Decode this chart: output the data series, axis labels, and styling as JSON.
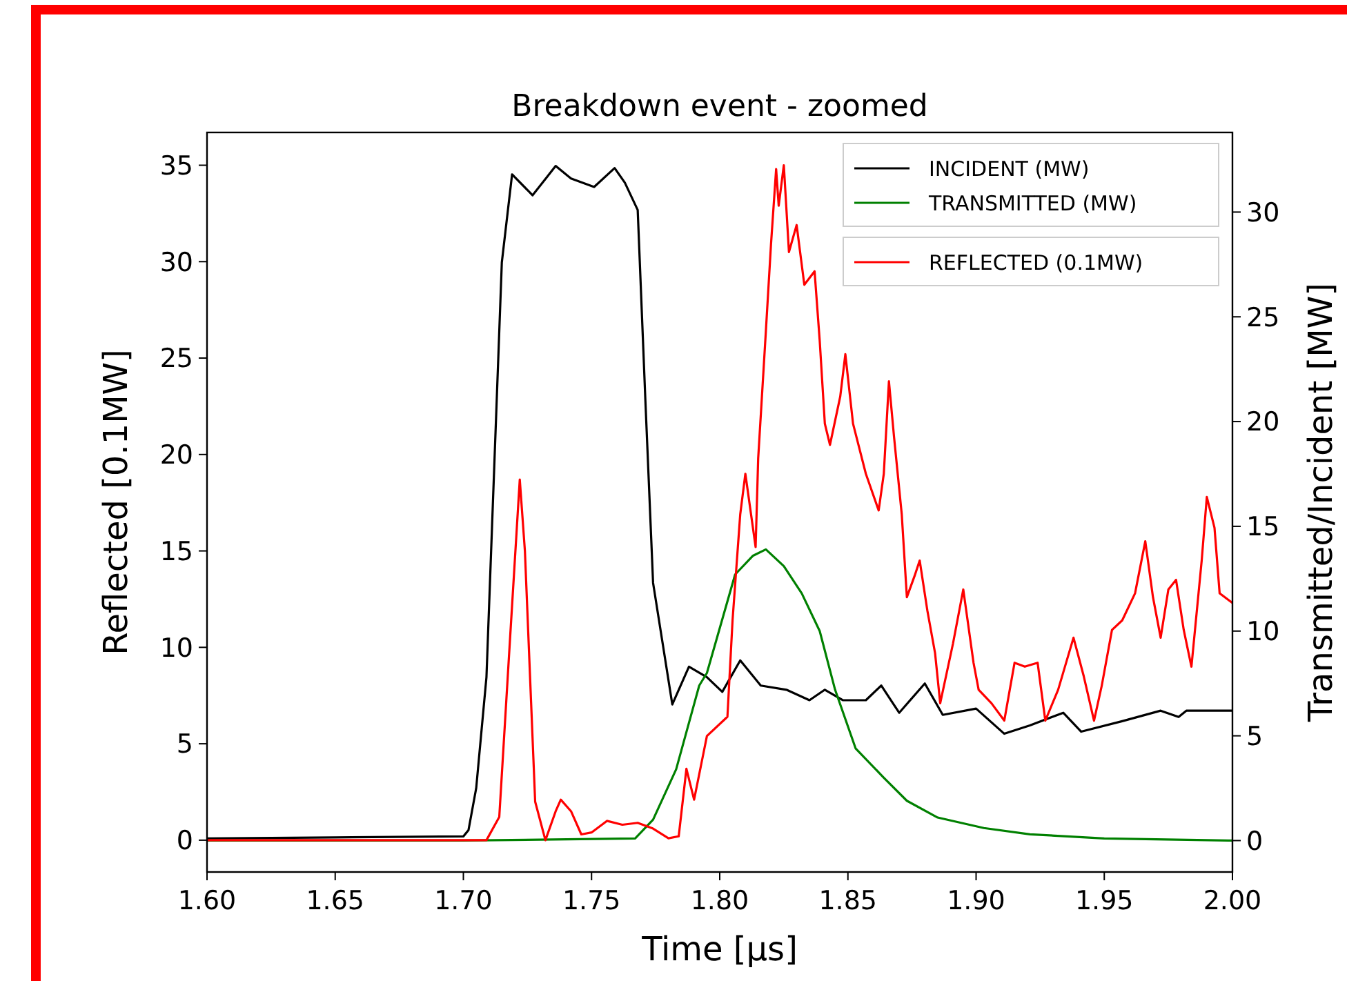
{
  "chart_data": {
    "type": "line",
    "title": "Breakdown event - zoomed",
    "xlabel": "Time [μs]",
    "ylabel": "Reflected [0.1MW]",
    "y2label": "Transmitted/Incident [MW]",
    "xlim": [
      1.6,
      2.0
    ],
    "xticks": [
      {
        "value": 1.6,
        "label": "1.60"
      },
      1.65,
      {
        "value": 1.7,
        "label": "1.70"
      },
      1.75,
      {
        "value": 1.8,
        "label": "1.80"
      },
      1.85,
      {
        "value": 1.9,
        "label": "1.90"
      },
      1.95,
      {
        "value": 2.0,
        "label": "2.00"
      }
    ],
    "ylim": [
      -1.65,
      36.7
    ],
    "yticks": [
      0,
      5,
      10,
      15,
      20,
      25,
      30,
      35
    ],
    "y2lim": [
      -1.5,
      33.8
    ],
    "y2ticks": [
      0,
      5,
      10,
      15,
      20,
      25,
      30
    ],
    "grid": false,
    "legend": "top right",
    "marker": "none",
    "line_style": "solid",
    "series": [
      {
        "name": "INCIDENT (MW)",
        "color": "#000000",
        "axis": "y2",
        "x": [
          1.6,
          1.65,
          1.7,
          1.702,
          1.705,
          1.709,
          1.715,
          1.719,
          1.727,
          1.736,
          1.742,
          1.751,
          1.759,
          1.763,
          1.768,
          1.771,
          1.774,
          1.7815,
          1.788,
          1.795,
          1.801,
          1.808,
          1.816,
          1.826,
          1.835,
          1.841,
          1.848,
          1.857,
          1.863,
          1.87,
          1.88,
          1.887,
          1.9,
          1.911,
          1.921,
          1.934,
          1.941,
          1.957,
          1.972,
          1.979,
          1.982,
          2.0
        ],
        "values": [
          0.1,
          0.15,
          0.2,
          0.5,
          2.5,
          7.8,
          27.6,
          31.8,
          30.8,
          32.2,
          31.6,
          31.2,
          32.1,
          31.4,
          30.1,
          21.0,
          12.3,
          6.5,
          8.3,
          7.8,
          7.1,
          8.6,
          7.4,
          7.2,
          6.7,
          7.2,
          6.7,
          6.7,
          7.4,
          6.1,
          7.5,
          6.0,
          6.3,
          5.1,
          5.5,
          6.1,
          5.2,
          5.7,
          6.2,
          5.9,
          6.2,
          6.2
        ]
      },
      {
        "name": "TRANSMITTED (MW)",
        "color": "#008000",
        "axis": "y2",
        "x": [
          1.6,
          1.7,
          1.767,
          1.774,
          1.783,
          1.792,
          1.795,
          1.806,
          1.813,
          1.818,
          1.825,
          1.832,
          1.839,
          1.845,
          1.853,
          1.864,
          1.873,
          1.885,
          1.903,
          1.921,
          1.95,
          2.0
        ],
        "values": [
          0,
          0,
          0.1,
          1.0,
          3.4,
          7.4,
          8.0,
          12.7,
          13.6,
          13.9,
          13.1,
          11.8,
          10.0,
          7.2,
          4.4,
          3.0,
          1.9,
          1.1,
          0.6,
          0.3,
          0.1,
          0
        ]
      },
      {
        "name": "REFLECTED (0.1MW)",
        "color": "#ff0000",
        "axis": "y",
        "x": [
          1.6,
          1.7,
          1.709,
          1.714,
          1.718,
          1.722,
          1.724,
          1.728,
          1.732,
          1.736,
          1.738,
          1.742,
          1.746,
          1.75,
          1.756,
          1.762,
          1.768,
          1.774,
          1.78,
          1.784,
          1.787,
          1.79,
          1.795,
          1.803,
          1.805,
          1.808,
          1.81,
          1.814,
          1.815,
          1.818,
          1.82,
          1.822,
          1.823,
          1.825,
          1.827,
          1.83,
          1.833,
          1.837,
          1.839,
          1.841,
          1.843,
          1.847,
          1.849,
          1.852,
          1.857,
          1.862,
          1.864,
          1.866,
          1.868,
          1.871,
          1.873,
          1.876,
          1.878,
          1.881,
          1.884,
          1.886,
          1.891,
          1.895,
          1.899,
          1.901,
          1.906,
          1.911,
          1.915,
          1.919,
          1.924,
          1.927,
          1.932,
          1.938,
          1.942,
          1.946,
          1.949,
          1.953,
          1.957,
          1.962,
          1.966,
          1.969,
          1.972,
          1.975,
          1.978,
          1.981,
          1.984,
          1.988,
          1.99,
          1.993,
          1.995,
          2.0
        ],
        "values": [
          0,
          0,
          0,
          1.2,
          10,
          18.7,
          15,
          2,
          0,
          1.5,
          2.1,
          1.5,
          0.3,
          0.4,
          1.0,
          0.8,
          0.9,
          0.6,
          0.1,
          0.2,
          3.7,
          2.1,
          5.4,
          6.4,
          11.4,
          16.9,
          19.0,
          15.2,
          19.8,
          26.4,
          30.9,
          34.8,
          32.9,
          35.0,
          30.5,
          31.9,
          28.8,
          29.5,
          25.9,
          21.6,
          20.5,
          23.0,
          25.2,
          21.6,
          19.0,
          17.1,
          19.0,
          23.8,
          20.9,
          16.9,
          12.6,
          13.7,
          14.5,
          11.9,
          9.7,
          7.1,
          10.2,
          13.0,
          9.2,
          7.8,
          7.1,
          6.2,
          9.2,
          9.0,
          9.2,
          6.2,
          7.8,
          10.5,
          8.5,
          6.2,
          8.0,
          10.9,
          11.4,
          12.8,
          15.5,
          12.6,
          10.5,
          13.0,
          13.5,
          10.9,
          9.0,
          14.5,
          17.8,
          16.2,
          12.8,
          12.3
        ]
      }
    ]
  }
}
